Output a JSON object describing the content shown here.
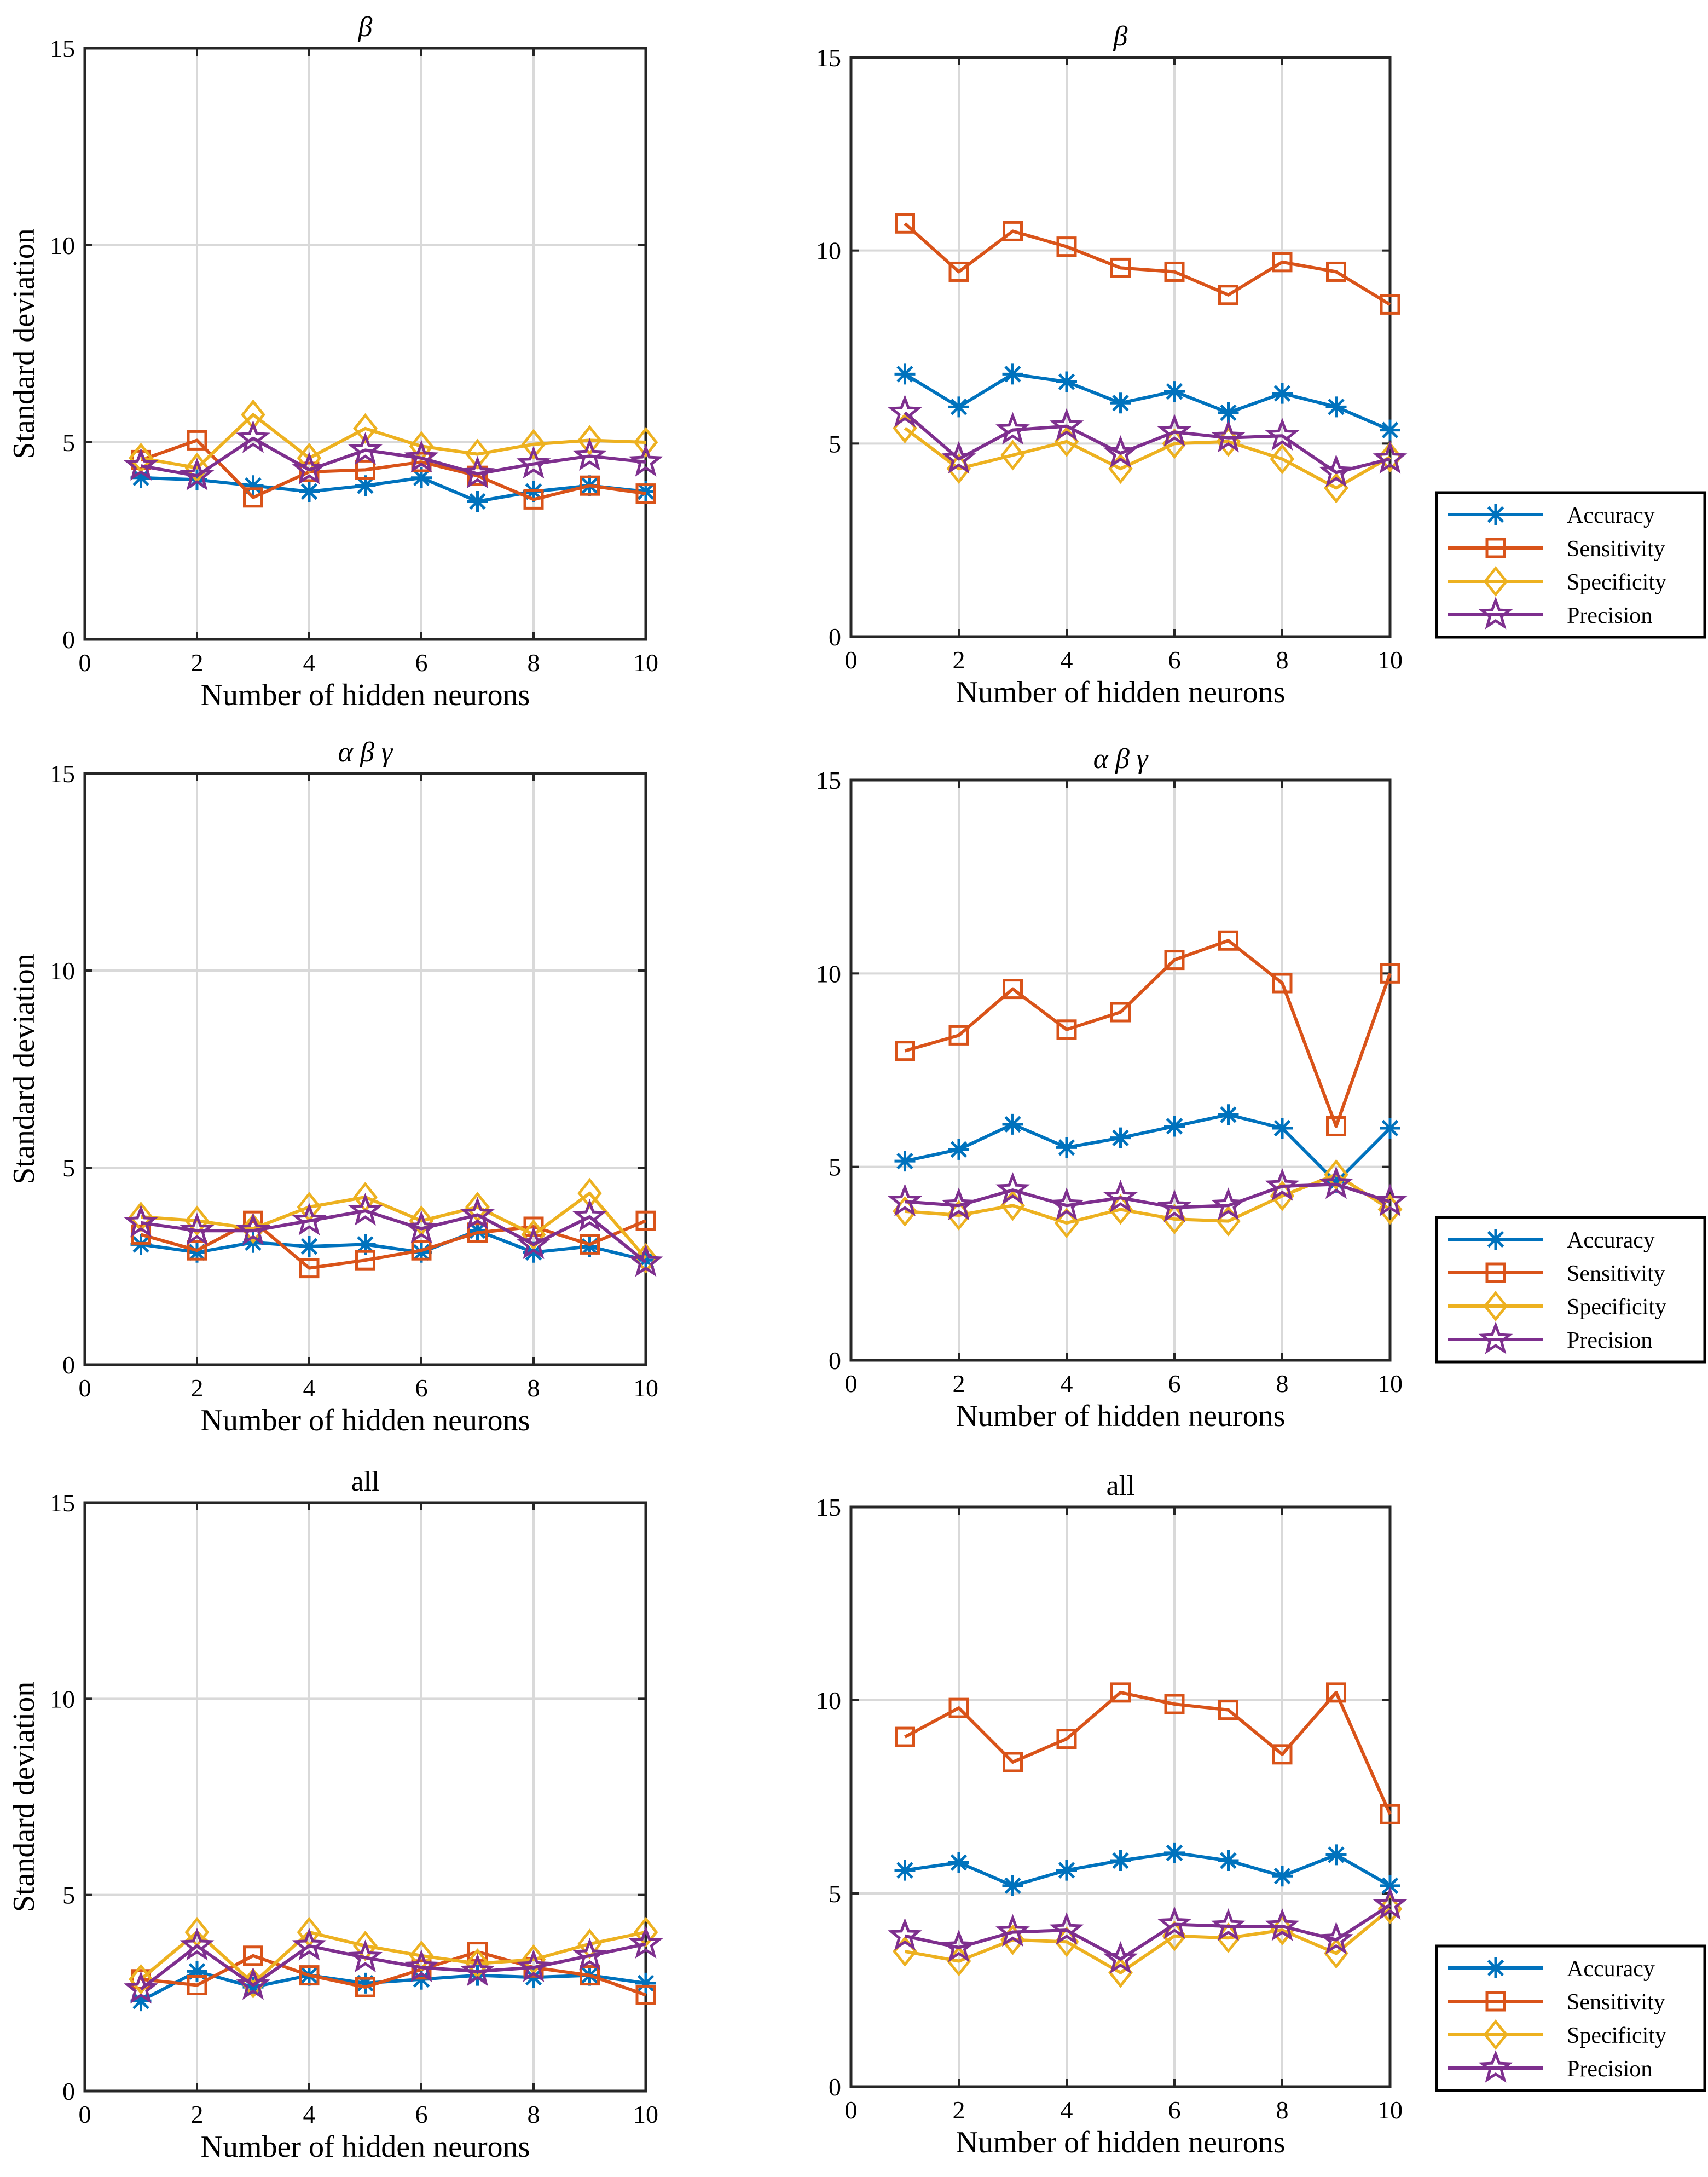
{
  "chart_data": [
    {
      "type": "line",
      "title": "β",
      "title_style": "math",
      "xlabel": "Number of hidden neurons",
      "ylabel": "Standard deviation",
      "xlim": [
        0,
        10
      ],
      "ylim": [
        0,
        15
      ],
      "xticks": [
        "0",
        "2",
        "4",
        "6",
        "8",
        "10"
      ],
      "yticks": [
        "0",
        "5",
        "10",
        "15"
      ],
      "grid": true,
      "legend": false,
      "x": [
        1,
        2,
        3,
        4,
        5,
        6,
        7,
        8,
        9,
        10
      ],
      "series": [
        {
          "name": "Accuracy",
          "values": [
            4.1,
            4.05,
            3.9,
            3.75,
            3.9,
            4.1,
            3.5,
            3.75,
            3.9,
            3.75
          ]
        },
        {
          "name": "Sensitivity",
          "values": [
            4.55,
            5.05,
            3.6,
            4.25,
            4.3,
            4.5,
            4.15,
            3.55,
            3.9,
            3.7
          ]
        },
        {
          "name": "Specificity",
          "values": [
            4.6,
            4.35,
            5.7,
            4.6,
            5.35,
            4.9,
            4.7,
            4.95,
            5.05,
            5.0
          ]
        },
        {
          "name": "Precision",
          "values": [
            4.4,
            4.15,
            5.1,
            4.3,
            4.8,
            4.6,
            4.2,
            4.45,
            4.65,
            4.5
          ]
        }
      ]
    },
    {
      "type": "line",
      "title": "β",
      "title_style": "math",
      "xlabel": "Number of hidden neurons",
      "ylabel": "",
      "xlim": [
        0,
        10
      ],
      "ylim": [
        0,
        15
      ],
      "xticks": [
        "0",
        "2",
        "4",
        "6",
        "8",
        "10"
      ],
      "yticks": [
        "0",
        "5",
        "10",
        "15"
      ],
      "grid": true,
      "legend": true,
      "x": [
        1,
        2,
        3,
        4,
        5,
        6,
        7,
        8,
        9,
        10
      ],
      "series": [
        {
          "name": "Accuracy",
          "values": [
            6.8,
            5.95,
            6.8,
            6.6,
            6.05,
            6.35,
            5.8,
            6.3,
            5.95,
            5.35
          ]
        },
        {
          "name": "Sensitivity",
          "values": [
            10.7,
            9.45,
            10.5,
            10.1,
            9.55,
            9.45,
            8.85,
            9.7,
            9.45,
            8.6
          ]
        },
        {
          "name": "Specificity",
          "values": [
            5.4,
            4.35,
            4.7,
            5.05,
            4.35,
            5.0,
            5.05,
            4.6,
            3.85,
            4.65
          ]
        },
        {
          "name": "Precision",
          "values": [
            5.8,
            4.6,
            5.35,
            5.45,
            4.75,
            5.3,
            5.15,
            5.2,
            4.25,
            4.6
          ]
        }
      ]
    },
    {
      "type": "line",
      "title": "α β γ",
      "title_style": "math",
      "xlabel": "Number of hidden neurons",
      "ylabel": "Standard deviation",
      "xlim": [
        0,
        10
      ],
      "ylim": [
        0,
        15
      ],
      "xticks": [
        "0",
        "2",
        "4",
        "6",
        "8",
        "10"
      ],
      "yticks": [
        "0",
        "5",
        "10",
        "15"
      ],
      "grid": true,
      "legend": false,
      "x": [
        1,
        2,
        3,
        4,
        5,
        6,
        7,
        8,
        9,
        10
      ],
      "series": [
        {
          "name": "Accuracy",
          "values": [
            3.05,
            2.85,
            3.1,
            3.0,
            3.05,
            2.85,
            3.4,
            2.85,
            3.0,
            2.65
          ]
        },
        {
          "name": "Sensitivity",
          "values": [
            3.3,
            2.9,
            3.65,
            2.45,
            2.65,
            2.9,
            3.35,
            3.5,
            3.05,
            3.65
          ]
        },
        {
          "name": "Specificity",
          "values": [
            3.75,
            3.65,
            3.45,
            4.0,
            4.25,
            3.65,
            4.0,
            3.3,
            4.35,
            2.7
          ]
        },
        {
          "name": "Precision",
          "values": [
            3.6,
            3.4,
            3.4,
            3.65,
            3.9,
            3.45,
            3.8,
            3.05,
            3.75,
            2.6
          ]
        }
      ]
    },
    {
      "type": "line",
      "title": "α β γ",
      "title_style": "math",
      "xlabel": "Number of hidden neurons",
      "ylabel": "",
      "xlim": [
        0,
        10
      ],
      "ylim": [
        0,
        15
      ],
      "xticks": [
        "0",
        "2",
        "4",
        "6",
        "8",
        "10"
      ],
      "yticks": [
        "0",
        "5",
        "10",
        "15"
      ],
      "grid": true,
      "legend": true,
      "x": [
        1,
        2,
        3,
        4,
        5,
        6,
        7,
        8,
        9,
        10
      ],
      "series": [
        {
          "name": "Accuracy",
          "values": [
            5.15,
            5.45,
            6.1,
            5.5,
            5.75,
            6.05,
            6.35,
            6.0,
            4.6,
            6.0
          ]
        },
        {
          "name": "Sensitivity",
          "values": [
            8.0,
            8.4,
            9.6,
            8.55,
            9.0,
            10.35,
            10.85,
            9.75,
            6.05,
            10.0
          ]
        },
        {
          "name": "Specificity",
          "values": [
            3.85,
            3.75,
            4.0,
            3.55,
            3.9,
            3.65,
            3.6,
            4.25,
            4.8,
            3.9
          ]
        },
        {
          "name": "Precision",
          "values": [
            4.1,
            4.0,
            4.4,
            4.0,
            4.2,
            3.95,
            4.0,
            4.5,
            4.55,
            4.1
          ]
        }
      ]
    },
    {
      "type": "line",
      "title": "all",
      "title_style": "plain",
      "xlabel": "Number of hidden neurons",
      "ylabel": "Standard deviation",
      "xlim": [
        0,
        10
      ],
      "ylim": [
        0,
        15
      ],
      "xticks": [
        "0",
        "2",
        "4",
        "6",
        "8",
        "10"
      ],
      "yticks": [
        "0",
        "5",
        "10",
        "15"
      ],
      "grid": true,
      "legend": false,
      "x": [
        1,
        2,
        3,
        4,
        5,
        6,
        7,
        8,
        9,
        10
      ],
      "series": [
        {
          "name": "Accuracy",
          "values": [
            2.3,
            3.05,
            2.65,
            2.95,
            2.75,
            2.85,
            2.95,
            2.9,
            2.95,
            2.75
          ]
        },
        {
          "name": "Sensitivity",
          "values": [
            2.85,
            2.7,
            3.45,
            2.95,
            2.65,
            3.1,
            3.55,
            3.15,
            2.95,
            2.45
          ]
        },
        {
          "name": "Specificity",
          "values": [
            2.85,
            4.05,
            2.75,
            4.05,
            3.7,
            3.45,
            3.25,
            3.35,
            3.75,
            4.05
          ]
        },
        {
          "name": "Precision",
          "values": [
            2.6,
            3.7,
            2.7,
            3.7,
            3.4,
            3.15,
            3.05,
            3.15,
            3.45,
            3.75
          ]
        }
      ]
    },
    {
      "type": "line",
      "title": "all",
      "title_style": "plain",
      "xlabel": "Number of hidden neurons",
      "ylabel": "",
      "xlim": [
        0,
        10
      ],
      "ylim": [
        0,
        15
      ],
      "xticks": [
        "0",
        "2",
        "4",
        "6",
        "8",
        "10"
      ],
      "yticks": [
        "0",
        "5",
        "10",
        "15"
      ],
      "grid": true,
      "legend": true,
      "x": [
        1,
        2,
        3,
        4,
        5,
        6,
        7,
        8,
        9,
        10
      ],
      "series": [
        {
          "name": "Accuracy",
          "values": [
            5.6,
            5.8,
            5.2,
            5.6,
            5.85,
            6.05,
            5.85,
            5.45,
            6.0,
            5.2
          ]
        },
        {
          "name": "Sensitivity",
          "values": [
            9.05,
            9.8,
            8.4,
            9.0,
            10.2,
            9.9,
            9.75,
            8.6,
            10.2,
            7.05
          ]
        },
        {
          "name": "Specificity",
          "values": [
            3.5,
            3.25,
            3.8,
            3.75,
            2.95,
            3.9,
            3.85,
            4.05,
            3.45,
            4.6
          ]
        },
        {
          "name": "Precision",
          "values": [
            3.9,
            3.6,
            4.0,
            4.05,
            3.3,
            4.2,
            4.15,
            4.15,
            3.8,
            4.7
          ]
        }
      ]
    }
  ],
  "colors": {
    "Accuracy": "#0072BD",
    "Sensitivity": "#D95319",
    "Specificity": "#EDB120",
    "Precision": "#7E2F8E",
    "grid": "#d9d9d9",
    "axis": "#262626"
  },
  "markers": {
    "Accuracy": "asterisk",
    "Sensitivity": "square",
    "Specificity": "diamond",
    "Precision": "pentagram"
  }
}
